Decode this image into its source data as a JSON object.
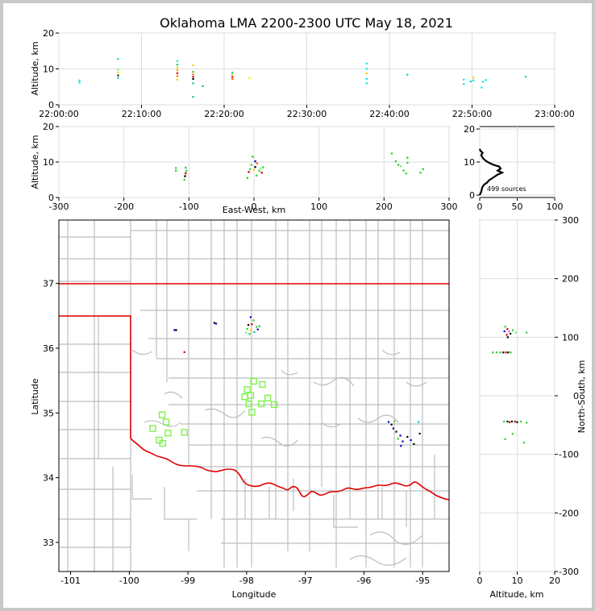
{
  "chart_data": {
    "type": "scatter",
    "title": "Oklahoma LMA 2200-2300 UTC May 18, 2021",
    "panels": {
      "time_altitude": {
        "ylabel": "Altitude, km",
        "xlim_seconds": [
          0,
          3600
        ],
        "ylim": [
          0,
          20
        ],
        "xticks": [
          "22:00:00",
          "22:10:00",
          "22:20:00",
          "22:30:00",
          "22:40:00",
          "22:50:00",
          "23:00:00"
        ],
        "yticks": [
          0,
          10,
          20
        ],
        "points": [
          {
            "t": 150,
            "z": 6.2,
            "c": "#00e5e5"
          },
          {
            "t": 150,
            "z": 6.8,
            "c": "#00e5e5"
          },
          {
            "t": 430,
            "z": 7.5,
            "c": "#00cccc"
          },
          {
            "t": 430,
            "z": 8.2,
            "c": "#222222"
          },
          {
            "t": 430,
            "z": 9.0,
            "c": "#ffd000"
          },
          {
            "t": 430,
            "z": 9.8,
            "c": "#66ff66"
          },
          {
            "t": 430,
            "z": 12.8,
            "c": "#00e5e5"
          },
          {
            "t": 860,
            "z": 7.0,
            "c": "#ffcc00"
          },
          {
            "t": 860,
            "z": 8.0,
            "c": "#ff6600"
          },
          {
            "t": 860,
            "z": 8.8,
            "c": "#cc0000"
          },
          {
            "t": 860,
            "z": 9.6,
            "c": "#ff9900"
          },
          {
            "t": 860,
            "z": 10.4,
            "c": "#ffcc00"
          },
          {
            "t": 860,
            "z": 11.2,
            "c": "#00cc66"
          },
          {
            "t": 860,
            "z": 12.2,
            "c": "#00e5e5"
          },
          {
            "t": 975,
            "z": 7.2,
            "c": "#000000"
          },
          {
            "t": 975,
            "z": 7.8,
            "c": "#cc0000"
          },
          {
            "t": 975,
            "z": 8.5,
            "c": "#ff6600"
          },
          {
            "t": 975,
            "z": 9.2,
            "c": "#33cc33"
          },
          {
            "t": 975,
            "z": 11.0,
            "c": "#ffcc00"
          },
          {
            "t": 975,
            "z": 6.0,
            "c": "#00cc66"
          },
          {
            "t": 975,
            "z": 2.2,
            "c": "#00cc66"
          },
          {
            "t": 1045,
            "z": 5.2,
            "c": "#00cc66"
          },
          {
            "t": 1260,
            "z": 7.2,
            "c": "#ff6600"
          },
          {
            "t": 1260,
            "z": 7.8,
            "c": "#cc0000"
          },
          {
            "t": 1260,
            "z": 8.5,
            "c": "#ffcc00"
          },
          {
            "t": 1260,
            "z": 9.0,
            "c": "#00cccc"
          },
          {
            "t": 1385,
            "z": 7.4,
            "c": "#ffee00"
          },
          {
            "t": 2235,
            "z": 6.0,
            "c": "#00e5e5"
          },
          {
            "t": 2235,
            "z": 7.2,
            "c": "#00e5e5"
          },
          {
            "t": 2235,
            "z": 8.8,
            "c": "#ffcc00"
          },
          {
            "t": 2235,
            "z": 10.0,
            "c": "#00e5e5"
          },
          {
            "t": 2235,
            "z": 11.5,
            "c": "#00e5e5"
          },
          {
            "t": 2530,
            "z": 8.4,
            "c": "#00cccc"
          },
          {
            "t": 2940,
            "z": 5.8,
            "c": "#00e5e5"
          },
          {
            "t": 2940,
            "z": 7.0,
            "c": "#00e5e5"
          },
          {
            "t": 2990,
            "z": 6.5,
            "c": "#00cccc"
          },
          {
            "t": 3010,
            "z": 6.8,
            "c": "#00e5e5"
          },
          {
            "t": 3010,
            "z": 7.6,
            "c": "#ffcc00"
          },
          {
            "t": 3070,
            "z": 4.8,
            "c": "#00e5e5"
          },
          {
            "t": 3080,
            "z": 6.4,
            "c": "#00e5e5"
          },
          {
            "t": 3100,
            "z": 6.9,
            "c": "#00e5e5"
          },
          {
            "t": 3390,
            "z": 7.8,
            "c": "#00cccc"
          }
        ]
      },
      "ew_altitude": {
        "ylabel": "Altitude, km",
        "xlabel": "East-West, km",
        "xlim": [
          -300,
          300
        ],
        "ylim": [
          0,
          20
        ],
        "xticks": [
          -300,
          -200,
          -100,
          0,
          100,
          200,
          300
        ],
        "yticks": [
          0,
          10,
          20
        ],
        "points": [
          {
            "x": -120,
            "z": 7.5,
            "c": "#33cc33"
          },
          {
            "x": -120,
            "z": 8.3,
            "c": "#33cc33"
          },
          {
            "x": -107,
            "z": 5.0,
            "c": "#33cc33"
          },
          {
            "x": -106,
            "z": 6.0,
            "c": "#000000"
          },
          {
            "x": -105,
            "z": 6.8,
            "c": "#cc0000"
          },
          {
            "x": -104,
            "z": 7.5,
            "c": "#33cc33"
          },
          {
            "x": -105,
            "z": 8.4,
            "c": "#00cc66"
          },
          {
            "x": -8,
            "z": 7.2,
            "c": "#cc0000"
          },
          {
            "x": -6,
            "z": 8.0,
            "c": "#33cc33"
          },
          {
            "x": -4,
            "z": 9.2,
            "c": "#33cc33"
          },
          {
            "x": -2,
            "z": 11.5,
            "c": "#33cc33"
          },
          {
            "x": 0,
            "z": 7.8,
            "c": "#ffcc00"
          },
          {
            "x": 2,
            "z": 8.6,
            "c": "#000000"
          },
          {
            "x": 2,
            "z": 10.2,
            "c": "#0000cc"
          },
          {
            "x": 4,
            "z": 6.2,
            "c": "#33cc33"
          },
          {
            "x": 5,
            "z": 9.6,
            "c": "#ff6600"
          },
          {
            "x": 8,
            "z": 7.5,
            "c": "#33cc33"
          },
          {
            "x": 10,
            "z": 8.2,
            "c": "#66ff66"
          },
          {
            "x": 12,
            "z": 7.0,
            "c": "#cc0000"
          },
          {
            "x": -10,
            "z": 5.5,
            "c": "#33cc33"
          },
          {
            "x": 14,
            "z": 8.5,
            "c": "#33cc33"
          },
          {
            "x": 212,
            "z": 12.4,
            "c": "#33cc33"
          },
          {
            "x": 218,
            "z": 10.2,
            "c": "#33cc33"
          },
          {
            "x": 222,
            "z": 9.2,
            "c": "#33cc33"
          },
          {
            "x": 226,
            "z": 8.8,
            "c": "#66ff66"
          },
          {
            "x": 230,
            "z": 7.6,
            "c": "#33cc33"
          },
          {
            "x": 236,
            "z": 9.8,
            "c": "#33cc33"
          },
          {
            "x": 236,
            "z": 11.2,
            "c": "#33cc33"
          },
          {
            "x": 256,
            "z": 7.0,
            "c": "#33cc33"
          },
          {
            "x": 260,
            "z": 8.0,
            "c": "#33cc33"
          },
          {
            "x": 234,
            "z": 6.8,
            "c": "#33cc33"
          }
        ]
      },
      "histogram": {
        "xlim": [
          0,
          100
        ],
        "ylim": [
          0,
          20
        ],
        "xticks": [
          0,
          50,
          100
        ],
        "yticks": [
          0,
          10,
          20
        ],
        "annotation": "499 sources",
        "profile": [
          [
            0,
            0.0
          ],
          [
            2,
            1.0
          ],
          [
            3,
            2.0
          ],
          [
            4,
            2.6
          ],
          [
            6,
            3.2
          ],
          [
            10,
            3.8
          ],
          [
            12,
            4.4
          ],
          [
            16,
            5.0
          ],
          [
            20,
            5.6
          ],
          [
            24,
            6.2
          ],
          [
            30,
            6.8
          ],
          [
            24,
            7.4
          ],
          [
            28,
            8.0
          ],
          [
            26,
            8.6
          ],
          [
            18,
            9.2
          ],
          [
            12,
            9.8
          ],
          [
            8,
            10.4
          ],
          [
            5,
            11.0
          ],
          [
            3,
            11.6
          ],
          [
            2,
            12.2
          ],
          [
            4,
            12.8
          ],
          [
            1,
            13.4
          ],
          [
            0,
            14.0
          ]
        ]
      },
      "plan": {
        "xlabel": "Longitude",
        "ylabel": "Latitude",
        "xlim": [
          -101.2,
          -94.55
        ],
        "ylim": [
          32.55,
          37.98
        ],
        "xticks": [
          -101,
          -100,
          -99,
          -98,
          -97,
          -96,
          -95
        ],
        "yticks": [
          33,
          34,
          35,
          36,
          37
        ],
        "points": [
          {
            "lon": -99.23,
            "lat": 36.28,
            "c": "#0000cc"
          },
          {
            "lon": -99.2,
            "lat": 36.28,
            "c": "#000000"
          },
          {
            "lon": -98.55,
            "lat": 36.39,
            "c": "#000000"
          },
          {
            "lon": -98.52,
            "lat": 36.38,
            "c": "#0000cc"
          },
          {
            "lon": -97.93,
            "lat": 36.48,
            "c": "#0000cc"
          },
          {
            "lon": -97.88,
            "lat": 36.43,
            "c": "#33cc33"
          },
          {
            "lon": -97.97,
            "lat": 36.36,
            "c": "#000000"
          },
          {
            "lon": -97.99,
            "lat": 36.3,
            "c": "#33cc33"
          },
          {
            "lon": -97.93,
            "lat": 36.28,
            "c": "#ffcc00"
          },
          {
            "lon": -97.87,
            "lat": 36.25,
            "c": "#00cc66"
          },
          {
            "lon": -97.83,
            "lat": 36.33,
            "c": "#33cc33"
          },
          {
            "lon": -97.78,
            "lat": 36.34,
            "c": "#33cc33"
          },
          {
            "lon": -97.81,
            "lat": 36.29,
            "c": "#0000cc"
          },
          {
            "lon": -97.95,
            "lat": 36.22,
            "c": "#00cc66"
          },
          {
            "lon": -98.01,
            "lat": 36.24,
            "c": "#66ff66"
          },
          {
            "lon": -97.91,
            "lat": 36.37,
            "c": "#cc0000"
          },
          {
            "lon": -99.06,
            "lat": 35.94,
            "c": "#cc0000"
          },
          {
            "lon": -95.58,
            "lat": 34.86,
            "c": "#0000cc"
          },
          {
            "lon": -95.53,
            "lat": 34.82,
            "c": "#000000"
          },
          {
            "lon": -95.48,
            "lat": 34.87,
            "c": "#33cc33"
          },
          {
            "lon": -95.5,
            "lat": 34.76,
            "c": "#0000cc"
          },
          {
            "lon": -95.45,
            "lat": 34.71,
            "c": "#000000"
          },
          {
            "lon": -95.38,
            "lat": 34.65,
            "c": "#0000cc"
          },
          {
            "lon": -95.42,
            "lat": 34.6,
            "c": "#33cc33"
          },
          {
            "lon": -95.34,
            "lat": 34.56,
            "c": "#0000cc"
          },
          {
            "lon": -95.37,
            "lat": 34.49,
            "c": "#0000cc"
          },
          {
            "lon": -95.26,
            "lat": 34.63,
            "c": "#000000"
          },
          {
            "lon": -95.2,
            "lat": 34.58,
            "c": "#0000cc"
          },
          {
            "lon": -95.07,
            "lat": 34.86,
            "c": "#00cccc"
          },
          {
            "lon": -95.05,
            "lat": 34.68,
            "c": "#000000"
          },
          {
            "lon": -95.15,
            "lat": 34.52,
            "c": "#000000"
          }
        ],
        "stations": [
          [
            -97.88,
            35.49
          ],
          [
            -97.99,
            35.36
          ],
          [
            -98.03,
            35.25
          ],
          [
            -97.93,
            35.27
          ],
          [
            -97.73,
            35.44
          ],
          [
            -97.64,
            35.23
          ],
          [
            -97.53,
            35.13
          ],
          [
            -97.75,
            35.14
          ],
          [
            -97.96,
            35.14
          ],
          [
            -97.91,
            35.01
          ],
          [
            -99.44,
            34.97
          ],
          [
            -99.37,
            34.86
          ],
          [
            -99.34,
            34.69
          ],
          [
            -99.6,
            34.76
          ],
          [
            -99.06,
            34.7
          ],
          [
            -99.49,
            34.58
          ],
          [
            -99.43,
            34.53
          ]
        ]
      },
      "ns_altitude": {
        "xlabel": "Altitude, km",
        "ylabel": "North-South, km",
        "xlim": [
          0,
          20
        ],
        "ylim": [
          -300,
          300
        ],
        "xticks": [
          0,
          10,
          20
        ],
        "yticks": [
          -300,
          -200,
          -100,
          0,
          100,
          200,
          300
        ],
        "points": [
          {
            "z": 3.5,
            "y": 74,
            "c": "#33cc33"
          },
          {
            "z": 4.5,
            "y": 74,
            "c": "#33cc33"
          },
          {
            "z": 5.5,
            "y": 74,
            "c": "#33cc33"
          },
          {
            "z": 6.3,
            "y": 74,
            "c": "#000000"
          },
          {
            "z": 7.0,
            "y": 74,
            "c": "#cc0000"
          },
          {
            "z": 7.6,
            "y": 74,
            "c": "#000000"
          },
          {
            "z": 8.3,
            "y": 74,
            "c": "#33cc33"
          },
          {
            "z": 6.8,
            "y": 118,
            "c": "#33cc33"
          },
          {
            "z": 7.4,
            "y": 114,
            "c": "#cc0000"
          },
          {
            "z": 7.8,
            "y": 110,
            "c": "#ff66cc"
          },
          {
            "z": 8.2,
            "y": 106,
            "c": "#000000"
          },
          {
            "z": 8.8,
            "y": 112,
            "c": "#33cc33"
          },
          {
            "z": 9.6,
            "y": 108,
            "c": "#66ff66"
          },
          {
            "z": 7.2,
            "y": 104,
            "c": "#cc0000"
          },
          {
            "z": 6.6,
            "y": 110,
            "c": "#0000cc"
          },
          {
            "z": 12.5,
            "y": 108,
            "c": "#33cc33"
          },
          {
            "z": 7.5,
            "y": 100,
            "c": "#000000"
          },
          {
            "z": 6.5,
            "y": -44,
            "c": "#33cc33"
          },
          {
            "z": 7.4,
            "y": -44,
            "c": "#000000"
          },
          {
            "z": 8.0,
            "y": -45,
            "c": "#cc0000"
          },
          {
            "z": 8.6,
            "y": -44,
            "c": "#000000"
          },
          {
            "z": 9.4,
            "y": -44,
            "c": "#cc0000"
          },
          {
            "z": 10.0,
            "y": -45,
            "c": "#000000"
          },
          {
            "z": 11.0,
            "y": -44,
            "c": "#33cc33"
          },
          {
            "z": 12.5,
            "y": -46,
            "c": "#33cc33"
          },
          {
            "z": 6.8,
            "y": -74,
            "c": "#33cc33"
          },
          {
            "z": 8.8,
            "y": -65,
            "c": "#33cc33"
          },
          {
            "z": 11.8,
            "y": -80,
            "c": "#33cc33"
          }
        ]
      }
    }
  }
}
